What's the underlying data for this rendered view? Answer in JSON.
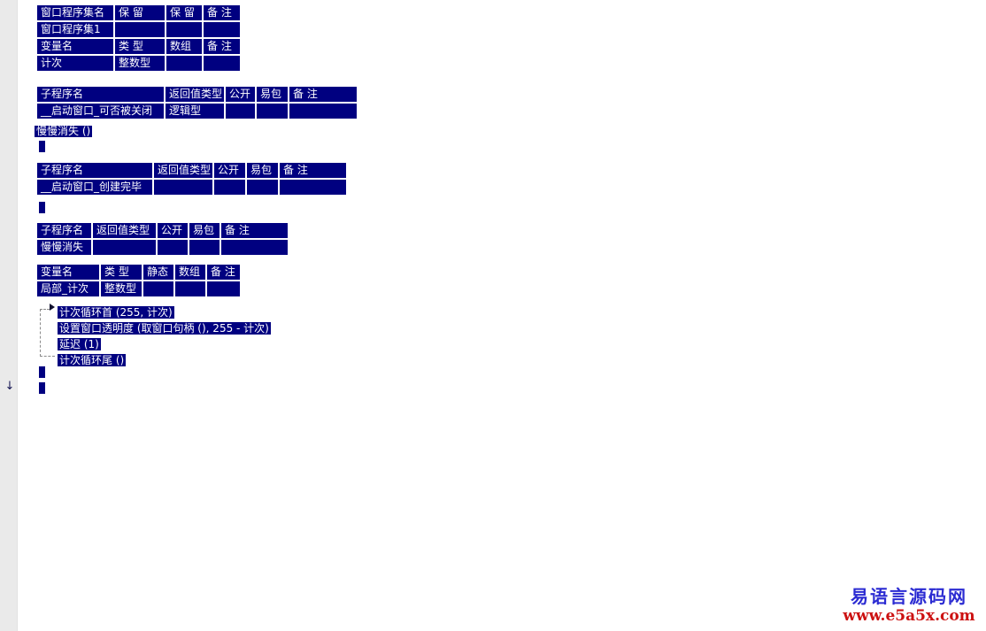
{
  "page": {
    "background": "#ffffff",
    "gutter_color": "#eaeaea",
    "table_color": "#000080",
    "table_text_color": "#ffffff"
  },
  "gutter": {
    "down_arrow": "↓"
  },
  "tables": [
    {
      "rows": [
        [
          "窗口程序集名",
          "保 留",
          "保 留",
          "备 注"
        ],
        [
          "窗口程序集1",
          "",
          "",
          ""
        ],
        [
          "变量名",
          "类 型",
          "数组",
          "备 注"
        ],
        [
          "计次",
          "整数型",
          "",
          ""
        ]
      ]
    },
    {
      "rows": [
        [
          "子程序名",
          "返回值类型",
          "公开",
          "易包",
          "备 注"
        ],
        [
          "__启动窗口_可否被关闭",
          "逻辑型",
          "",
          "",
          ""
        ]
      ]
    },
    {
      "rows": [
        [
          "子程序名",
          "返回值类型",
          "公开",
          "易包",
          "备 注"
        ],
        [
          "__启动窗口_创建完毕",
          "",
          "",
          "",
          ""
        ]
      ]
    },
    {
      "rows": [
        [
          "子程序名",
          "返回值类型",
          "公开",
          "易包",
          "备 注"
        ],
        [
          "慢慢消失",
          "",
          "",
          "",
          ""
        ]
      ]
    },
    {
      "rows": [
        [
          "变量名",
          "类 型",
          "静态",
          "数组",
          "备 注"
        ],
        [
          "局部_计次",
          "整数型",
          "",
          "",
          ""
        ]
      ]
    }
  ],
  "statements": {
    "call_fade": "慢慢消失 ()"
  },
  "code": {
    "lines": [
      "计次循环首 (255, 计次)",
      "设置窗口透明度 (取窗口句柄 (), 255 - 计次)",
      "延迟 (1)",
      "计次循环尾 ()"
    ]
  },
  "watermark": {
    "site_name": "易语言源码网",
    "site_url": "www.e5a5x.com",
    "name_color": "#2b2bd2",
    "url_color": "#cc1111"
  }
}
